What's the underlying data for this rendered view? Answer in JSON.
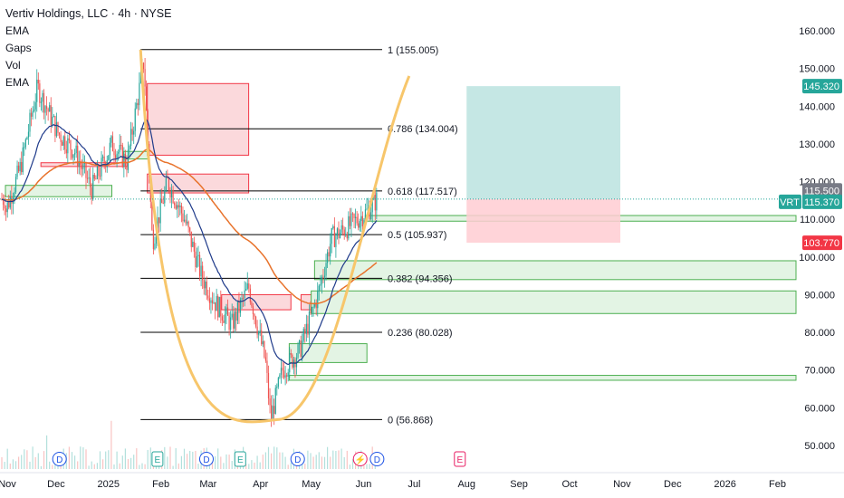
{
  "header": {
    "title": "Vertiv Holdings, LLC · 4h · NYSE",
    "indicators": [
      "EMA",
      "Gaps",
      "Vol",
      "EMA"
    ]
  },
  "colors": {
    "up": "#26a69a",
    "down": "#ef5350",
    "bullish_zone_fill": "#e3f4e4",
    "bullish_zone_border": "#4caf50",
    "bearish_zone_fill": "#fbd9dc",
    "bearish_zone_border": "#f23645",
    "ema_fast": "#1e3a8a",
    "ema_slow": "#e8732c",
    "cup_curve": "#f7c66b",
    "target_zone": "#b2dfdb",
    "stop_zone": "#ffcdd2",
    "fib_line": "#000000",
    "current_price_tag": "#26a69a",
    "target_tag": "#26a69a",
    "stop_tag": "#f23645",
    "grey_tag": "#787b86"
  },
  "chart_data": {
    "type": "candlestick",
    "symbol": "VRT",
    "timeframe": "4h",
    "exchange": "NYSE",
    "ylim": [
      46,
      163
    ],
    "y_ticks": [
      "160.000",
      "150.000",
      "140.000",
      "130.000",
      "120.000",
      "110.000",
      "100.000",
      "90.000",
      "80.000",
      "70.000",
      "60.000",
      "50.000"
    ],
    "y_tick_values": [
      160,
      150,
      140,
      130,
      120,
      110,
      100,
      90,
      80,
      70,
      60,
      50
    ],
    "x_ticks": [
      "Nov",
      "Dec",
      "2025",
      "Feb",
      "Mar",
      "Apr",
      "May",
      "Jun",
      "Jul",
      "Aug",
      "Sep",
      "Oct",
      "Nov",
      "Dec",
      "2026",
      "Feb"
    ],
    "price_tags": [
      {
        "label": "145.320",
        "value": 145.32,
        "kind": "target"
      },
      {
        "label": "115.500",
        "value": 115.5,
        "kind": "grey"
      },
      {
        "label": "115.370",
        "value": 115.37,
        "kind": "current",
        "symbol": "VRT"
      },
      {
        "label": "103.770",
        "value": 103.77,
        "kind": "stop"
      }
    ],
    "fib_levels": [
      {
        "label": "1 (155.005)",
        "value": 155.005
      },
      {
        "label": "0.786 (134.004)",
        "value": 134.004
      },
      {
        "label": "0.618 (117.517)",
        "value": 117.517
      },
      {
        "label": "0.5 (105.937)",
        "value": 105.937
      },
      {
        "label": "0.382 (94.356)",
        "value": 94.356
      },
      {
        "label": "0.236 (80.028)",
        "value": 80.028
      },
      {
        "label": "0 (56.868)",
        "value": 56.868
      }
    ],
    "price_path": [
      {
        "date": "2024-11-01",
        "price": 112
      },
      {
        "date": "2024-11-10",
        "price": 124
      },
      {
        "date": "2024-11-20",
        "price": 145
      },
      {
        "date": "2024-12-02",
        "price": 133
      },
      {
        "date": "2024-12-12",
        "price": 128
      },
      {
        "date": "2024-12-22",
        "price": 118
      },
      {
        "date": "2025-01-03",
        "price": 130
      },
      {
        "date": "2025-01-12",
        "price": 125
      },
      {
        "date": "2025-01-22",
        "price": 152
      },
      {
        "date": "2025-01-27",
        "price": 104
      },
      {
        "date": "2025-02-05",
        "price": 120
      },
      {
        "date": "2025-02-15",
        "price": 110
      },
      {
        "date": "2025-02-25",
        "price": 95
      },
      {
        "date": "2025-03-05",
        "price": 88
      },
      {
        "date": "2025-03-15",
        "price": 82
      },
      {
        "date": "2025-03-25",
        "price": 92
      },
      {
        "date": "2025-04-04",
        "price": 72
      },
      {
        "date": "2025-04-07",
        "price": 57
      },
      {
        "date": "2025-04-14",
        "price": 70
      },
      {
        "date": "2025-04-24",
        "price": 75
      },
      {
        "date": "2025-05-05",
        "price": 90
      },
      {
        "date": "2025-05-13",
        "price": 105
      },
      {
        "date": "2025-05-23",
        "price": 108
      },
      {
        "date": "2025-06-03",
        "price": 112
      },
      {
        "date": "2025-06-09",
        "price": 115.37
      }
    ],
    "position": {
      "entry": 115.37,
      "target": 145.32,
      "stop": 103.77
    }
  },
  "events": [
    {
      "label": "D",
      "kind": "dividend"
    },
    {
      "label": "E",
      "kind": "earnings"
    },
    {
      "label": "D",
      "kind": "dividend"
    },
    {
      "label": "E",
      "kind": "earnings"
    },
    {
      "label": "D",
      "kind": "dividend"
    },
    {
      "label": "D",
      "kind": "dividend"
    },
    {
      "label": "E",
      "kind": "earnings-upcoming"
    }
  ]
}
